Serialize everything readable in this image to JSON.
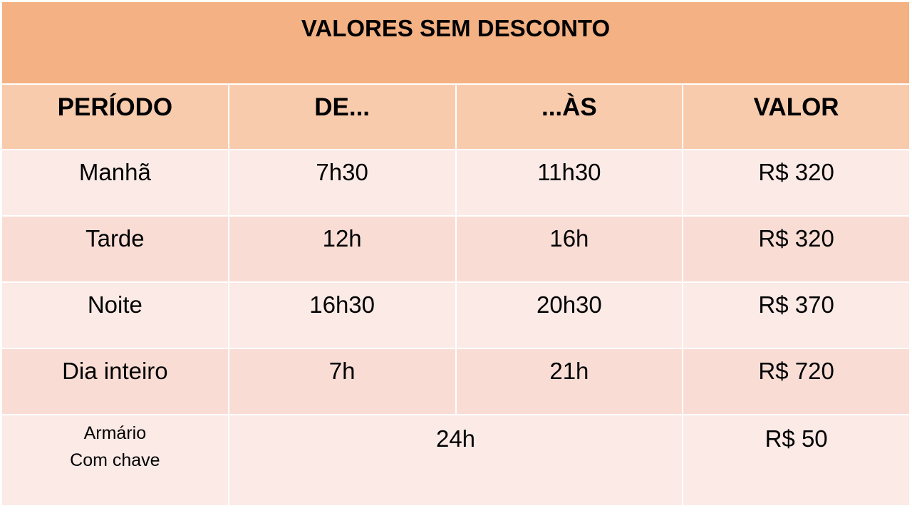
{
  "title": "VALORES SEM DESCONTO",
  "headers": [
    "PERÍODO",
    "DE...",
    "...ÀS",
    "VALOR"
  ],
  "rows": [
    {
      "periodo": "Manhã",
      "de": "7h30",
      "as": "11h30",
      "valor": "R$ 320"
    },
    {
      "periodo": "Tarde",
      "de": "12h",
      "as": "16h",
      "valor": "R$ 320"
    },
    {
      "periodo": "Noite",
      "de": "16h30",
      "as": "20h30",
      "valor": "R$ 370"
    },
    {
      "periodo": "Dia inteiro",
      "de": "7h",
      "as": "21h",
      "valor": "R$ 720"
    }
  ],
  "locker": {
    "line1": "Armário",
    "line2": "Com chave",
    "duration": "24h",
    "valor": "R$ 50"
  },
  "colors": {
    "title_bg": "#F4B183",
    "header_bg": "#F8CBAD",
    "row_light": "#FBEAE6",
    "row_dark": "#F9DDD5"
  }
}
